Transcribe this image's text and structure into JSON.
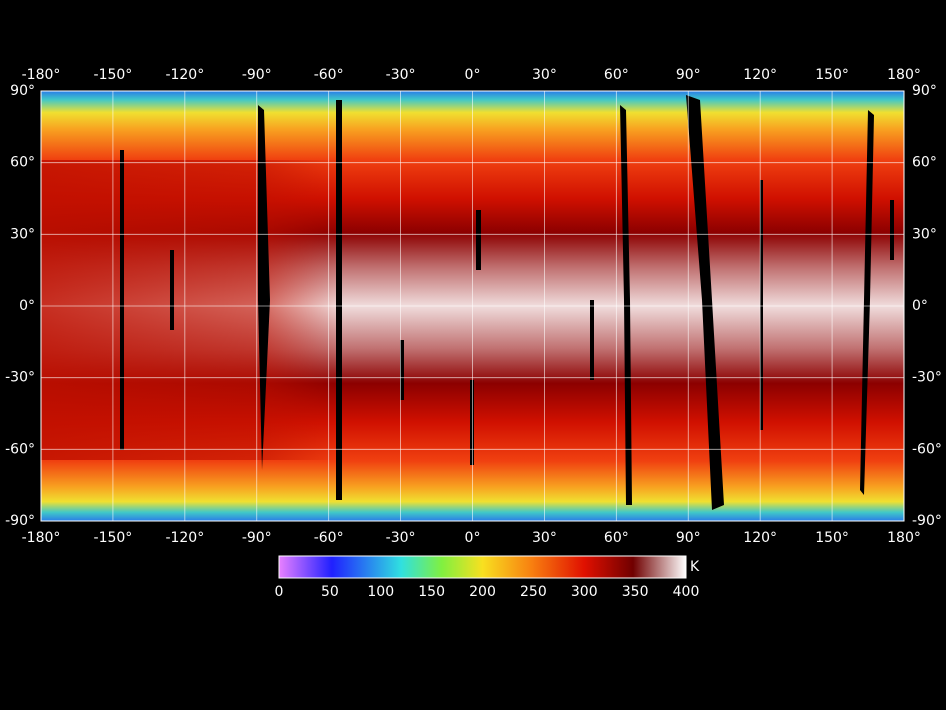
{
  "map": {
    "lon_labels": [
      "-180°",
      "-150°",
      "-120°",
      "-90°",
      "-60°",
      "-30°",
      "0°",
      "30°",
      "60°",
      "90°",
      "120°",
      "150°",
      "180°"
    ],
    "lat_labels": [
      "90°",
      "60°",
      "30°",
      "0°",
      "-30°",
      "-60°",
      "-90°"
    ]
  },
  "colorbar": {
    "ticks": [
      0,
      50,
      100,
      150,
      200,
      250,
      300,
      350,
      400
    ],
    "unit": "K"
  }
}
